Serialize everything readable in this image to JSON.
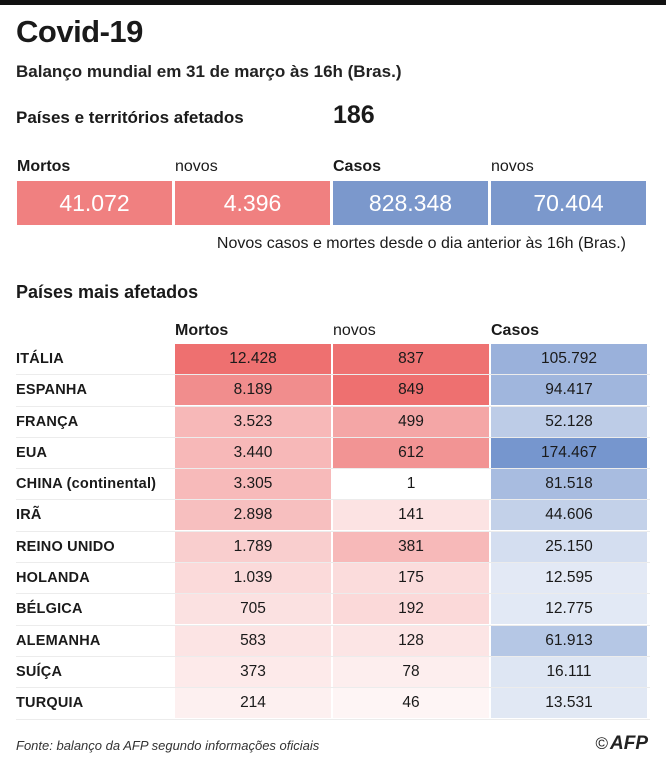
{
  "header": {
    "title": "Covid-19",
    "subtitle": "Balanço mundial em 31 de março às 16h (Bras.)"
  },
  "affected": {
    "label": "Países e territórios afetados",
    "value": "186"
  },
  "totals": {
    "deaths_label": "Mortos",
    "deaths": "41.072",
    "new_deaths_label": "novos",
    "new_deaths": "4.396",
    "cases_label": "Casos",
    "cases": "828.348",
    "new_cases_label": "novos",
    "new_cases": "70.404",
    "note": "Novos casos e mortes desde o dia anterior às 16h (Bras.)"
  },
  "colors": {
    "deaths_accent": "#f08080",
    "cases_accent": "#7b98cc"
  },
  "chart_data": {
    "type": "table",
    "title": "Países mais afetados",
    "columns": [
      "Mortos",
      "novos",
      "Casos"
    ],
    "rows": [
      {
        "country": "ITÁLIA",
        "deaths": 12428,
        "new": 837,
        "cases": 105792,
        "deaths_label": "12.428",
        "new_label": "837",
        "cases_label": "105.792"
      },
      {
        "country": "ESPANHA",
        "deaths": 8189,
        "new": 849,
        "cases": 94417,
        "deaths_label": "8.189",
        "new_label": "849",
        "cases_label": "94.417"
      },
      {
        "country": "FRANÇA",
        "deaths": 3523,
        "new": 499,
        "cases": 52128,
        "deaths_label": "3.523",
        "new_label": "499",
        "cases_label": "52.128"
      },
      {
        "country": "EUA",
        "deaths": 3440,
        "new": 612,
        "cases": 174467,
        "deaths_label": "3.440",
        "new_label": "612",
        "cases_label": "174.467"
      },
      {
        "country": "CHINA (continental)",
        "deaths": 3305,
        "new": 1,
        "cases": 81518,
        "deaths_label": "3.305",
        "new_label": "1",
        "cases_label": "81.518"
      },
      {
        "country": "IRÃ",
        "deaths": 2898,
        "new": 141,
        "cases": 44606,
        "deaths_label": "2.898",
        "new_label": "141",
        "cases_label": "44.606"
      },
      {
        "country": "REINO UNIDO",
        "deaths": 1789,
        "new": 381,
        "cases": 25150,
        "deaths_label": "1.789",
        "new_label": "381",
        "cases_label": "25.150"
      },
      {
        "country": "HOLANDA",
        "deaths": 1039,
        "new": 175,
        "cases": 12595,
        "deaths_label": "1.039",
        "new_label": "175",
        "cases_label": "12.595"
      },
      {
        "country": "BÉLGICA",
        "deaths": 705,
        "new": 192,
        "cases": 12775,
        "deaths_label": "705",
        "new_label": "192",
        "cases_label": "12.775"
      },
      {
        "country": "ALEMANHA",
        "deaths": 583,
        "new": 128,
        "cases": 61913,
        "deaths_label": "583",
        "new_label": "128",
        "cases_label": "61.913"
      },
      {
        "country": "SUÍÇA",
        "deaths": 373,
        "new": 78,
        "cases": 16111,
        "deaths_label": "373",
        "new_label": "78",
        "cases_label": "16.111"
      },
      {
        "country": "TURQUIA",
        "deaths": 214,
        "new": 46,
        "cases": 13531,
        "deaths_label": "214",
        "new_label": "46",
        "cases_label": "13.531"
      }
    ]
  },
  "footer": {
    "source": "Fonte: balanço da AFP segundo informações oficiais",
    "credit_symbol": "©",
    "credit": "AFP"
  }
}
